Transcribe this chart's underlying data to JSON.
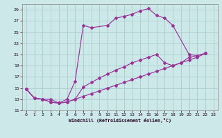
{
  "xlabel": "Windchill (Refroidissement éolien,°C)",
  "bg_color": "#cce8e8",
  "line_color": "#993399",
  "grid_color": "#aacccc",
  "ylim": [
    11,
    30
  ],
  "xlim": [
    0,
    23
  ],
  "yticks": [
    11,
    13,
    15,
    17,
    19,
    21,
    23,
    25,
    27,
    29
  ],
  "xticks": [
    0,
    1,
    2,
    3,
    4,
    5,
    6,
    7,
    8,
    9,
    10,
    11,
    12,
    13,
    14,
    15,
    16,
    17,
    18,
    19,
    20,
    21,
    22,
    23
  ],
  "curve1_x": [
    0,
    1,
    2,
    3,
    4,
    5,
    6,
    7,
    8,
    10,
    11,
    12,
    13,
    14,
    15,
    16,
    17,
    18,
    20,
    21,
    22
  ],
  "curve1_y": [
    14.8,
    13.2,
    13.0,
    13.0,
    12.3,
    13.0,
    16.2,
    26.2,
    25.8,
    26.2,
    27.5,
    27.8,
    28.2,
    28.8,
    29.2,
    28.0,
    27.5,
    26.2,
    21.0,
    20.8,
    21.2
  ],
  "curve2_x": [
    0,
    1,
    2,
    3,
    4,
    5,
    6,
    7,
    8,
    9,
    10,
    11,
    12,
    13,
    14,
    15,
    16,
    17,
    18,
    19,
    20,
    21,
    22
  ],
  "curve2_y": [
    14.8,
    13.2,
    13.0,
    12.5,
    12.3,
    12.5,
    13.0,
    15.2,
    16.0,
    16.8,
    17.5,
    18.2,
    18.8,
    19.5,
    20.0,
    20.5,
    21.0,
    19.5,
    19.0,
    19.5,
    20.5,
    20.8,
    21.2
  ],
  "curve3_x": [
    0,
    1,
    2,
    3,
    4,
    5,
    6,
    7,
    8,
    9,
    10,
    11,
    12,
    13,
    14,
    15,
    16,
    17,
    18,
    19,
    20,
    21,
    22
  ],
  "curve3_y": [
    14.8,
    13.2,
    13.0,
    12.5,
    12.3,
    12.5,
    13.0,
    13.5,
    14.0,
    14.5,
    15.0,
    15.5,
    16.0,
    16.5,
    17.0,
    17.5,
    18.0,
    18.5,
    19.0,
    19.5,
    20.0,
    20.5,
    21.2
  ]
}
